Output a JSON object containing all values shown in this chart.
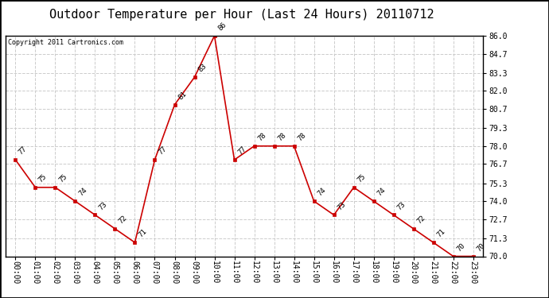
{
  "title": "Outdoor Temperature per Hour (Last 24 Hours) 20110712",
  "copyright_text": "Copyright 2011 Cartronics.com",
  "hours": [
    "00:00",
    "01:00",
    "02:00",
    "03:00",
    "04:00",
    "05:00",
    "06:00",
    "07:00",
    "08:00",
    "09:00",
    "10:00",
    "11:00",
    "12:00",
    "13:00",
    "14:00",
    "15:00",
    "16:00",
    "17:00",
    "18:00",
    "19:00",
    "20:00",
    "21:00",
    "22:00",
    "23:00"
  ],
  "temps": [
    77,
    75,
    75,
    74,
    73,
    72,
    71,
    77,
    81,
    83,
    86,
    77,
    78,
    78,
    78,
    74,
    73,
    75,
    74,
    73,
    72,
    71,
    70,
    70
  ],
  "ylim_min": 70.0,
  "ylim_max": 86.0,
  "yticks": [
    70.0,
    71.3,
    72.7,
    74.0,
    75.3,
    76.7,
    78.0,
    79.3,
    80.7,
    82.0,
    83.3,
    84.7,
    86.0
  ],
  "line_color": "#cc0000",
  "marker_color": "#cc0000",
  "background_color": "#ffffff",
  "grid_color": "#cccccc",
  "title_fontsize": 11,
  "copyright_fontsize": 6,
  "tick_fontsize": 7,
  "annotation_fontsize": 6.5
}
